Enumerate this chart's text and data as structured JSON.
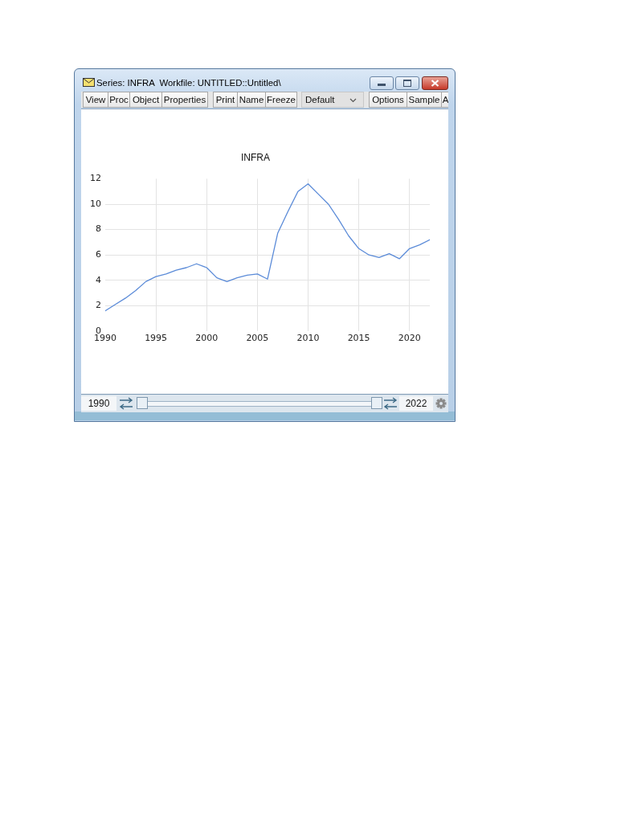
{
  "chart_data": {
    "type": "line",
    "title": "INFRA",
    "x": [
      1990,
      1991,
      1992,
      1993,
      1994,
      1995,
      1996,
      1997,
      1998,
      1999,
      2000,
      2001,
      2002,
      2003,
      2004,
      2005,
      2006,
      2007,
      2008,
      2009,
      2010,
      2011,
      2012,
      2013,
      2014,
      2015,
      2016,
      2017,
      2018,
      2019,
      2020,
      2021,
      2022
    ],
    "values": [
      1.6,
      2.1,
      2.6,
      3.2,
      3.9,
      4.3,
      4.5,
      4.8,
      5.0,
      5.3,
      5.0,
      4.2,
      3.9,
      4.2,
      4.4,
      4.5,
      4.1,
      7.7,
      9.4,
      11.0,
      11.6,
      10.8,
      10.0,
      8.8,
      7.5,
      6.5,
      6.0,
      5.8,
      6.1,
      5.7,
      6.5,
      6.8,
      7.2
    ],
    "color": "#5b8bd8",
    "xlim": [
      1990,
      2022
    ],
    "xticks": [
      1990,
      1995,
      2000,
      2005,
      2010,
      2015,
      2020
    ],
    "ylim": [
      0,
      12
    ],
    "yticks": [
      0,
      2,
      4,
      6,
      8,
      10,
      12
    ],
    "grid": true,
    "marker": "none",
    "line_style": "solid",
    "annotations": [
      "Series: INFRA  Workfile: UNTITLED::Untitled\\",
      "View",
      "Proc",
      "Object",
      "Properties",
      "Print",
      "Name",
      "Freeze",
      "Default",
      "Options",
      "Sample",
      "A",
      "1990",
      "2022"
    ]
  }
}
